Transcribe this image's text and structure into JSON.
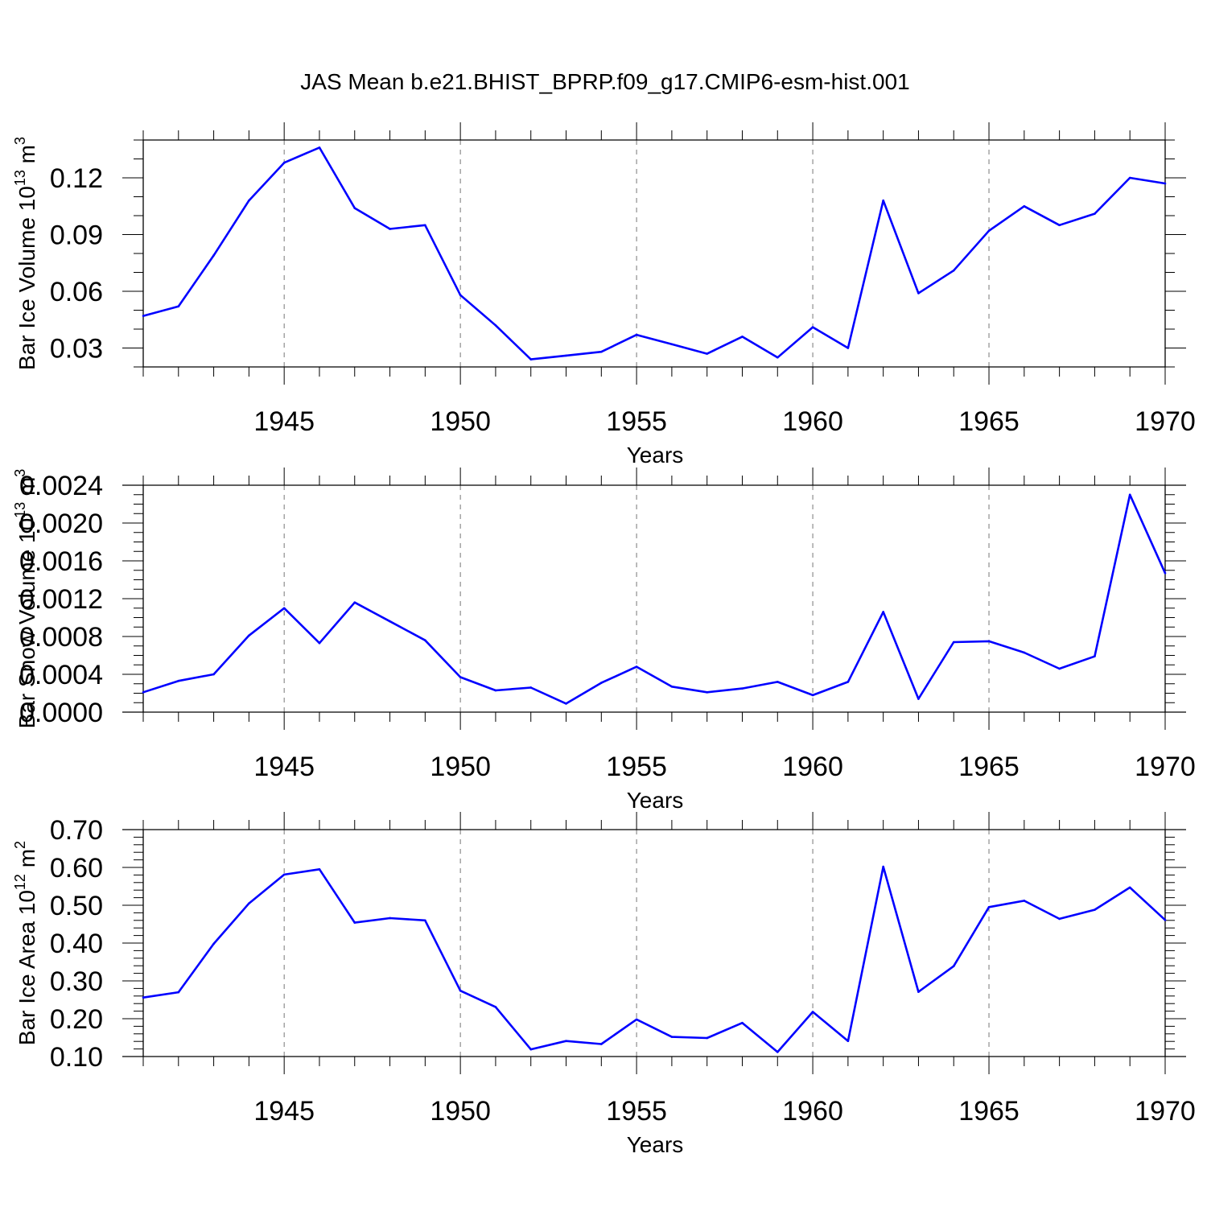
{
  "title": "JAS Mean b.e21.BHIST_BPRP.f09_g17.CMIP6-esm-hist.001",
  "colors": {
    "line": "#0000ff",
    "axis": "#000000",
    "grid": "#777777"
  },
  "chart_data": [
    {
      "type": "line",
      "ylabel": "Bar Ice Volume 10",
      "ylabel_sup": "13",
      "ylabel_unit": " m",
      "ylabel_unit_sup": "3",
      "xlabel": "Years",
      "xlim": [
        1941,
        1970
      ],
      "ylim": [
        0.02,
        0.14
      ],
      "yticks": [
        0.03,
        0.06,
        0.09,
        0.12
      ],
      "ytick_labels": [
        "0.03",
        "0.06",
        "0.09",
        "0.12"
      ],
      "yminor_step": 0.01,
      "xticks": [
        1945,
        1950,
        1955,
        1960,
        1965,
        1970
      ],
      "xtick_labels": [
        "1945",
        "1950",
        "1955",
        "1960",
        "1965",
        "1970"
      ],
      "grid": "vertical dashed at major x ticks",
      "x": [
        1941,
        1942,
        1943,
        1944,
        1945,
        1946,
        1947,
        1948,
        1949,
        1950,
        1951,
        1952,
        1953,
        1954,
        1955,
        1956,
        1957,
        1958,
        1959,
        1960,
        1961,
        1962,
        1963,
        1964,
        1965,
        1966,
        1967,
        1968,
        1969,
        1970
      ],
      "series": [
        {
          "values": [
            0.047,
            0.052,
            0.079,
            0.108,
            0.128,
            0.136,
            0.104,
            0.093,
            0.095,
            0.058,
            0.042,
            0.024,
            0.026,
            0.028,
            0.037,
            0.032,
            0.027,
            0.036,
            0.025,
            0.041,
            0.03,
            0.108,
            0.059,
            0.071,
            0.092,
            0.105,
            0.095,
            0.101,
            0.12,
            0.117
          ]
        }
      ]
    },
    {
      "type": "line",
      "ylabel": "Bar Snow Volume 10",
      "ylabel_sup": "13",
      "ylabel_unit": " m",
      "ylabel_unit_sup": "3",
      "xlabel": "Years",
      "xlim": [
        1941,
        1970
      ],
      "ylim": [
        0.0,
        0.0024
      ],
      "yticks": [
        0.0,
        0.0004,
        0.0008,
        0.0012,
        0.0016,
        0.002,
        0.0024
      ],
      "ytick_labels": [
        "0.0000",
        "0.0004",
        "0.0008",
        "0.0012",
        "0.0016",
        "0.0020",
        "0.0024"
      ],
      "yminor_step": 0.0001,
      "xticks": [
        1945,
        1950,
        1955,
        1960,
        1965,
        1970
      ],
      "xtick_labels": [
        "1945",
        "1950",
        "1955",
        "1960",
        "1965",
        "1970"
      ],
      "grid": "vertical dashed at major x ticks",
      "x": [
        1941,
        1942,
        1943,
        1944,
        1945,
        1946,
        1947,
        1948,
        1949,
        1950,
        1951,
        1952,
        1953,
        1954,
        1955,
        1956,
        1957,
        1958,
        1959,
        1960,
        1961,
        1962,
        1963,
        1964,
        1965,
        1966,
        1967,
        1968,
        1969,
        1970
      ],
      "series": [
        {
          "values": [
            0.00021,
            0.00033,
            0.0004,
            0.00081,
            0.0011,
            0.00073,
            0.00116,
            0.00096,
            0.00076,
            0.00037,
            0.00023,
            0.00026,
            9e-05,
            0.00031,
            0.00048,
            0.00027,
            0.00021,
            0.00025,
            0.00032,
            0.00018,
            0.00032,
            0.00106,
            0.00014,
            0.00074,
            0.00075,
            0.00063,
            0.00046,
            0.00059,
            0.0023,
            0.00147
          ]
        }
      ]
    },
    {
      "type": "line",
      "ylabel": "Bar Ice Area 10",
      "ylabel_sup": "12",
      "ylabel_unit": " m",
      "ylabel_unit_sup": "2",
      "xlabel": "Years",
      "xlim": [
        1941,
        1970
      ],
      "ylim": [
        0.1,
        0.7
      ],
      "yticks": [
        0.1,
        0.2,
        0.3,
        0.4,
        0.5,
        0.6,
        0.7
      ],
      "ytick_labels": [
        "0.10",
        "0.20",
        "0.30",
        "0.40",
        "0.50",
        "0.60",
        "0.70"
      ],
      "yminor_step": 0.02,
      "xticks": [
        1945,
        1950,
        1955,
        1960,
        1965,
        1970
      ],
      "xtick_labels": [
        "1945",
        "1950",
        "1955",
        "1960",
        "1965",
        "1970"
      ],
      "grid": "vertical dashed at major x ticks",
      "x": [
        1941,
        1942,
        1943,
        1944,
        1945,
        1946,
        1947,
        1948,
        1949,
        1950,
        1951,
        1952,
        1953,
        1954,
        1955,
        1956,
        1957,
        1958,
        1959,
        1960,
        1961,
        1962,
        1963,
        1964,
        1965,
        1966,
        1967,
        1968,
        1969,
        1970
      ],
      "series": [
        {
          "values": [
            0.256,
            0.27,
            0.398,
            0.505,
            0.581,
            0.595,
            0.454,
            0.466,
            0.46,
            0.274,
            0.231,
            0.119,
            0.141,
            0.133,
            0.198,
            0.152,
            0.149,
            0.189,
            0.112,
            0.218,
            0.141,
            0.602,
            0.271,
            0.339,
            0.495,
            0.512,
            0.464,
            0.488,
            0.547,
            0.461
          ]
        }
      ]
    }
  ]
}
